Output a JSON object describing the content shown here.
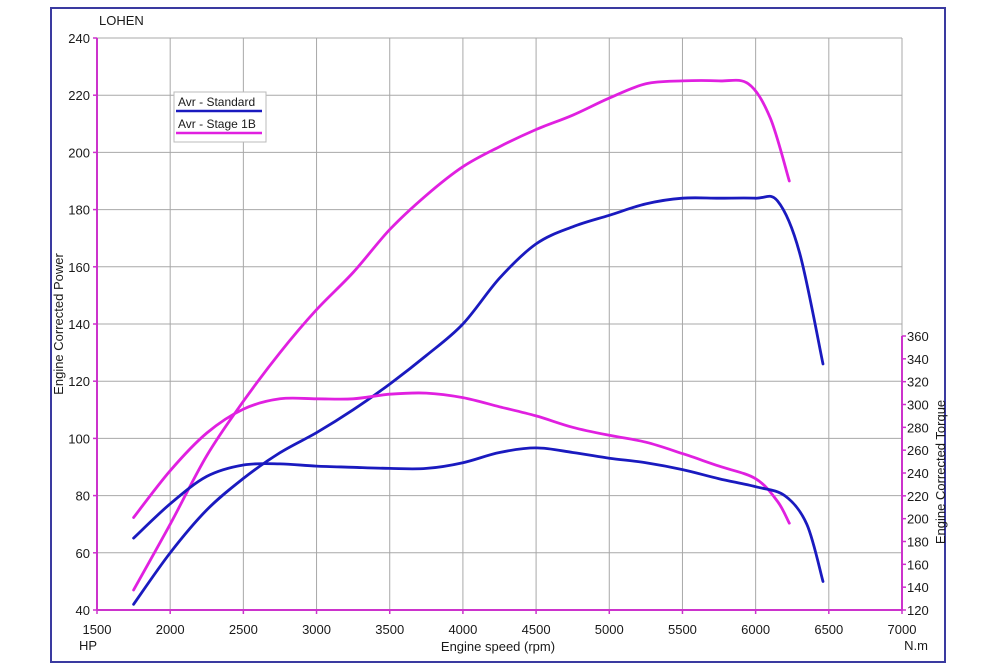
{
  "chart_data": {
    "type": "line",
    "title": "LOHEN",
    "xlabel": "Engine speed (rpm)",
    "x_unit": "HP",
    "ylabel_left": "Engine Corrected Power",
    "ylabel_right": "Engine Corrected Torque",
    "y2_unit": "N.m",
    "xlim": [
      1500,
      7000
    ],
    "ylim_left": [
      40,
      240
    ],
    "ylim_right": [
      120,
      360
    ],
    "x_ticks": [
      1500,
      2000,
      2500,
      3000,
      3500,
      4000,
      4500,
      5000,
      5500,
      6000,
      6500,
      7000
    ],
    "y_ticks_left": [
      40,
      60,
      80,
      100,
      120,
      140,
      160,
      180,
      200,
      220,
      240
    ],
    "y_ticks_right": [
      120,
      140,
      160,
      180,
      200,
      220,
      240,
      260,
      280,
      300,
      320,
      340,
      360
    ],
    "grid": true,
    "legend_position": "top-left",
    "series": [
      {
        "name": "Avr - Stage 1B",
        "quantity": "power",
        "axis": "left",
        "color": "#e020e0",
        "x": [
          1750,
          2000,
          2250,
          2500,
          2750,
          3000,
          3250,
          3500,
          3750,
          4000,
          4250,
          4500,
          4750,
          5000,
          5250,
          5500,
          5750,
          5950,
          6100,
          6230
        ],
        "y": [
          47,
          70,
          94,
          113,
          130,
          145,
          158,
          173,
          185,
          195,
          202,
          208,
          213,
          219,
          224,
          225,
          225,
          224,
          212,
          190
        ]
      },
      {
        "name": "Avr - Standard",
        "quantity": "power",
        "axis": "left",
        "color": "#1a1abf",
        "x": [
          1750,
          2000,
          2250,
          2500,
          2750,
          3000,
          3250,
          3500,
          3750,
          4000,
          4250,
          4500,
          4750,
          5000,
          5250,
          5500,
          5750,
          6000,
          6150,
          6300,
          6460
        ],
        "y": [
          42,
          60,
          75,
          86,
          95,
          102,
          110,
          119,
          129,
          140,
          156,
          168,
          174,
          178,
          182,
          184,
          184,
          184,
          183,
          165,
          126
        ]
      },
      {
        "name": "Avr - Stage 1B",
        "quantity": "torque",
        "axis": "right",
        "color": "#e020e0",
        "x": [
          1750,
          2000,
          2250,
          2500,
          2750,
          3000,
          3250,
          3500,
          3750,
          4000,
          4250,
          4500,
          4750,
          5000,
          5250,
          5500,
          5750,
          6000,
          6150,
          6230
        ],
        "y": [
          201,
          242,
          275,
          296,
          305,
          305,
          305,
          309,
          310,
          306,
          298,
          290,
          280,
          273,
          267,
          257,
          246,
          235,
          215,
          196
        ]
      },
      {
        "name": "Avr - Standard",
        "quantity": "torque",
        "axis": "right",
        "color": "#1a1abf",
        "x": [
          1750,
          2000,
          2250,
          2500,
          2750,
          3000,
          3250,
          3500,
          3750,
          4000,
          4250,
          4500,
          4750,
          5000,
          5250,
          5500,
          5750,
          6000,
          6200,
          6350,
          6460
        ],
        "y": [
          183,
          213,
          237,
          247,
          248,
          246,
          245,
          244,
          244,
          249,
          258,
          262,
          258,
          253,
          249,
          243,
          235,
          228,
          220,
          195,
          145
        ]
      }
    ]
  }
}
